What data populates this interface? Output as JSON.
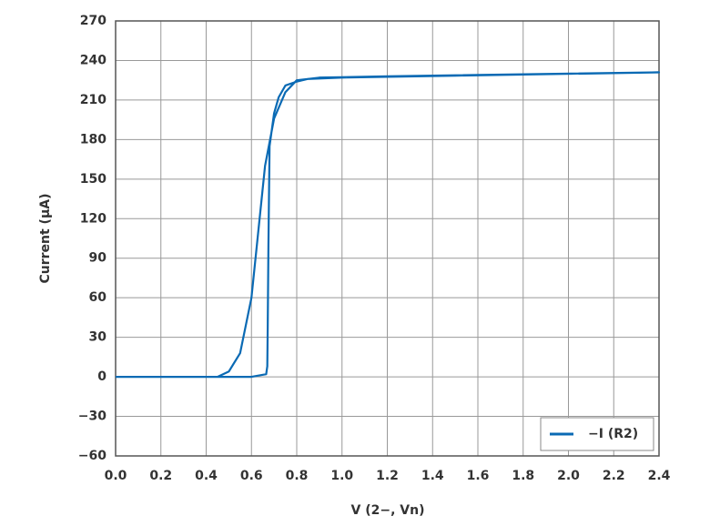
{
  "chart_data": {
    "type": "line",
    "x_label": "V (2−, Vn)",
    "y_label": "Current (µA)",
    "x": [
      0,
      0.3,
      0.45,
      0.5,
      0.55,
      0.6,
      0.63,
      0.66,
      0.7,
      0.75,
      0.8,
      0.9,
      1.2,
      2.4,
      1.0,
      0.85,
      0.8,
      0.75,
      0.72,
      0.7,
      0.68,
      0.675,
      0.672,
      0.67,
      0.665,
      0.6,
      0.3,
      0
    ],
    "series": [
      {
        "name": "−I (R2)",
        "color": "#0a6ab4",
        "values": [
          0,
          0,
          0,
          4,
          18,
          60,
          110,
          160,
          196,
          216,
          225,
          227,
          228,
          231,
          227,
          226,
          224,
          221,
          212,
          200,
          175,
          100,
          40,
          8,
          2,
          0,
          0,
          0
        ]
      }
    ],
    "xlim": [
      0,
      2.4
    ],
    "xticks": [
      {
        "value": 0,
        "label": "0.0"
      },
      0.2,
      0.4,
      0.6,
      0.8,
      {
        "value": 1,
        "label": "1.0"
      },
      1.2,
      1.4,
      1.6,
      1.8,
      {
        "value": 2,
        "label": "2.0"
      },
      2.2,
      2.4
    ],
    "ylim": [
      -60,
      270
    ],
    "yticks": [
      {
        "value": -60,
        "label": "−60"
      },
      {
        "value": -30,
        "label": "−30"
      },
      0,
      30,
      60,
      90,
      120,
      150,
      180,
      210,
      240,
      270
    ],
    "grid": true,
    "legend": "lower right"
  }
}
